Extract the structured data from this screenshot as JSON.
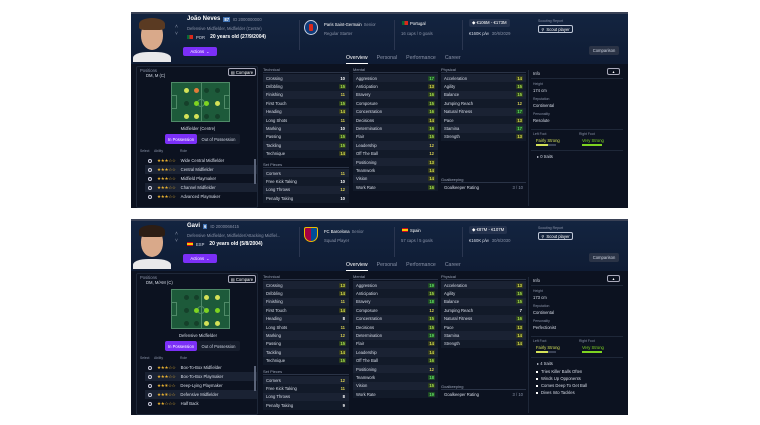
{
  "tabs": [
    "Overview",
    "Personal",
    "Performance",
    "Career"
  ],
  "labels": {
    "actions": "Actions",
    "comparison": "Comparison",
    "scout_player": "Scout player",
    "scouting_report": "Scouting Report",
    "positions": "Positions",
    "compare": "Compare",
    "in_possession": "In Possession",
    "out_possession": "Out of Possession",
    "select": "Select",
    "ability": "Ability",
    "role": "Role",
    "technical": "Technical",
    "mental": "Mental",
    "physical": "Physical",
    "set_pieces": "Set Pieces",
    "goalkeeping": "Goalkeeping",
    "goalkeeper_rating": "Goalkeeper Rating",
    "info": "Info",
    "height": "Height",
    "reputation": "Reputation",
    "personality": "Personality",
    "left_foot": "Left Foot",
    "right_foot": "Right Foot"
  },
  "colors": {
    "accent": "#7b2ff7",
    "natural": "#7ed321",
    "accomplished": "#d4e157",
    "unconvincing": "#e07b39"
  },
  "players": [
    {
      "name": "João Neves",
      "ca_badge": "87",
      "id": "ID 2000000000",
      "positions_long": "Defensive Midfielder, Midfielder (Centre)",
      "nation_code": "POR",
      "age": "20 years old (27/9/2004)",
      "club": "Paris Saint-Germain",
      "club_team": "Senior",
      "squad_status": "Regular Starter",
      "nation": "Portugal",
      "caps": "16 caps / 0 goals",
      "value": "€106M - €173M",
      "wage": "€160K p/w",
      "contract": "30/6/2029",
      "positions_short": "DM, M (C)",
      "position_label": "Midfielder (Centre)",
      "pitch": [
        [
          "yellow",
          "orange",
          "none",
          "none"
        ],
        [
          "none",
          "green",
          "green",
          "yellow"
        ],
        [
          "yellow",
          "yellow",
          "none",
          "none"
        ]
      ],
      "roles": [
        {
          "name": "Wide Central Midfielder",
          "stars": 3
        },
        {
          "name": "Central Midfielder",
          "stars": 3
        },
        {
          "name": "Midfield Playmaker",
          "stars": 3
        },
        {
          "name": "Channel Midfielder",
          "stars": 3
        },
        {
          "name": "Advanced Playmaker",
          "stars": 3
        }
      ],
      "technical": [
        [
          "Crossing",
          10
        ],
        [
          "Dribbling",
          15
        ],
        [
          "Finishing",
          11
        ],
        [
          "First Touch",
          15
        ],
        [
          "Heading",
          14
        ],
        [
          "Long Shots",
          11
        ],
        [
          "Marking",
          10
        ],
        [
          "Passing",
          15
        ],
        [
          "Tackling",
          15
        ],
        [
          "Technique",
          14
        ]
      ],
      "set_pieces": [
        [
          "Corners",
          11
        ],
        [
          "Free Kick Taking",
          10
        ],
        [
          "Long Throws",
          12
        ],
        [
          "Penalty Taking",
          10
        ]
      ],
      "mental": [
        [
          "Aggression",
          17
        ],
        [
          "Anticipation",
          13
        ],
        [
          "Bravery",
          16
        ],
        [
          "Composure",
          15
        ],
        [
          "Concentration",
          16
        ],
        [
          "Decisions",
          14
        ],
        [
          "Determination",
          16
        ],
        [
          "Flair",
          15
        ],
        [
          "Leadership",
          12
        ],
        [
          "Off The Ball",
          12
        ],
        [
          "Positioning",
          13
        ],
        [
          "Teamwork",
          14
        ],
        [
          "Vision",
          14
        ],
        [
          "Work Rate",
          16
        ]
      ],
      "physical": [
        [
          "Acceleration",
          14
        ],
        [
          "Agility",
          15
        ],
        [
          "Balance",
          15
        ],
        [
          "Jumping Reach",
          12
        ],
        [
          "Natural Fitness",
          17
        ],
        [
          "Pace",
          13
        ],
        [
          "Stamina",
          17
        ],
        [
          "Strength",
          13
        ]
      ],
      "gk_rating": "3 / 10",
      "height": "174 cm",
      "reputation": "Continental",
      "personality": "Resolute",
      "left_foot": "Fairly Strong",
      "left_foot_level": 3,
      "right_foot": "Very Strong",
      "right_foot_level": 5,
      "traits_count": "0 traits",
      "traits": []
    },
    {
      "name": "Gavi",
      "ca_badge": "6",
      "id": "ID 2000068415",
      "positions_long": "Defensive Midfielder, Midfielder/Attacking Midfiel...",
      "nation_code": "ESP",
      "age": "20 years old (5/8/2004)",
      "club": "FC Barcelona",
      "club_team": "Senior",
      "squad_status": "Squad Player",
      "nation": "Spain",
      "caps": "57 caps / 5 goals",
      "value": "€87M - €107M",
      "wage": "€160K p/w",
      "contract": "30/6/2030",
      "positions_short": "DM, M/AM (C)",
      "position_label": "Defensive Midfielder",
      "pitch": [
        [
          "none",
          "none",
          "yellow",
          "yellow"
        ],
        [
          "none",
          "green",
          "green",
          "green"
        ],
        [
          "none",
          "none",
          "yellow",
          "yellow"
        ]
      ],
      "roles": [
        {
          "name": "Box-To-Box Midfielder",
          "stars": 3
        },
        {
          "name": "Box-To-Box Playmaker",
          "stars": 3
        },
        {
          "name": "Deep-Lying Playmaker",
          "stars": 2.5
        },
        {
          "name": "Defensive Midfielder",
          "stars": 2.5
        },
        {
          "name": "Half Back",
          "stars": 2
        }
      ],
      "technical": [
        [
          "Crossing",
          13
        ],
        [
          "Dribbling",
          14
        ],
        [
          "Finishing",
          11
        ],
        [
          "First Touch",
          14
        ],
        [
          "Heading",
          8
        ],
        [
          "Long Shots",
          11
        ],
        [
          "Marking",
          12
        ],
        [
          "Passing",
          15
        ],
        [
          "Tackling",
          14
        ],
        [
          "Technique",
          15
        ]
      ],
      "set_pieces": [
        [
          "Corners",
          12
        ],
        [
          "Free Kick Taking",
          11
        ],
        [
          "Long Throws",
          8
        ],
        [
          "Penalty Taking",
          9
        ]
      ],
      "mental": [
        [
          "Aggression",
          19
        ],
        [
          "Anticipation",
          15
        ],
        [
          "Bravery",
          18
        ],
        [
          "Composure",
          12
        ],
        [
          "Concentration",
          15
        ],
        [
          "Decisions",
          15
        ],
        [
          "Determination",
          19
        ],
        [
          "Flair",
          14
        ],
        [
          "Leadership",
          14
        ],
        [
          "Off The Ball",
          16
        ],
        [
          "Positioning",
          12
        ],
        [
          "Teamwork",
          18
        ],
        [
          "Vision",
          15
        ],
        [
          "Work Rate",
          19
        ]
      ],
      "physical": [
        [
          "Acceleration",
          13
        ],
        [
          "Agility",
          15
        ],
        [
          "Balance",
          15
        ],
        [
          "Jumping Reach",
          7
        ],
        [
          "Natural Fitness",
          16
        ],
        [
          "Pace",
          13
        ],
        [
          "Stamina",
          14
        ],
        [
          "Strength",
          14
        ]
      ],
      "gk_rating": "3 / 10",
      "height": "173 cm",
      "reputation": "Continental",
      "personality": "Perfectionist",
      "left_foot": "Fairly Strong",
      "left_foot_level": 3,
      "right_foot": "Very Strong",
      "right_foot_level": 5,
      "traits_count": "4 traits",
      "traits": [
        "Tries Killer Balls Often",
        "Winds Up Opponents",
        "Comes Deep To Get Ball",
        "Dives Into Tackles"
      ]
    }
  ]
}
